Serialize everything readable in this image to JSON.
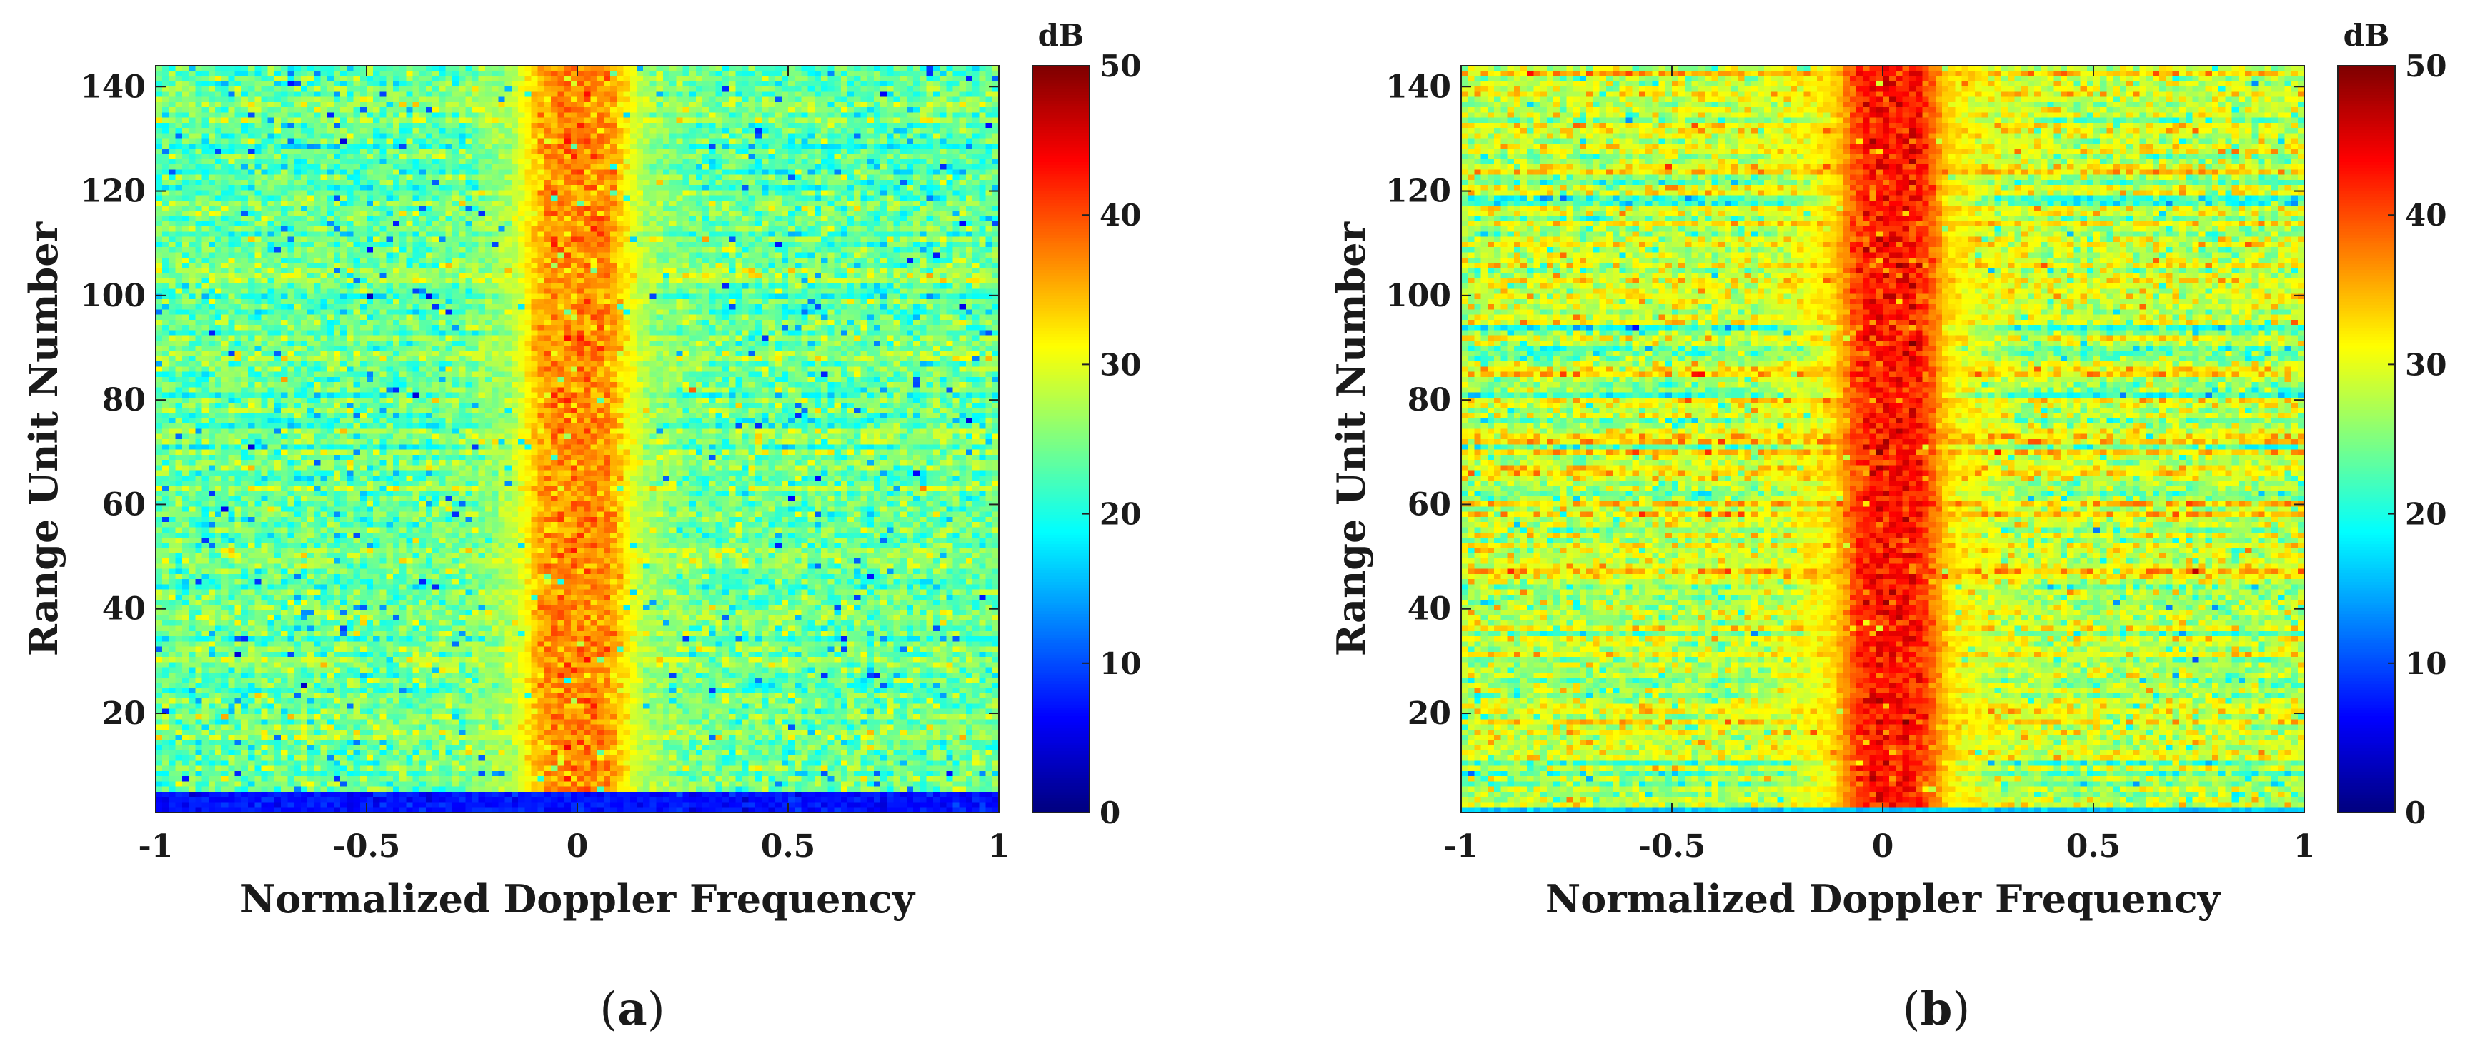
{
  "figure": {
    "panels": [
      "a",
      "b"
    ]
  },
  "chart_data": [
    {
      "type": "heatmap",
      "panel_caption": "(a)",
      "caption_open": "(",
      "caption_letter": "a",
      "caption_close": ")",
      "xlabel": "Normalized Doppler Frequency",
      "ylabel": "Range Unit Number",
      "xlim": [
        -1,
        1
      ],
      "ylim": [
        1,
        144
      ],
      "x_ticks": [
        -1,
        -0.5,
        0,
        0.5,
        1
      ],
      "x_tick_labels": [
        "-1",
        "-0.5",
        "0",
        "0.5",
        "1"
      ],
      "y_ticks": [
        20,
        40,
        60,
        80,
        100,
        120,
        140
      ],
      "y_tick_labels": [
        "20",
        "40",
        "60",
        "80",
        "100",
        "120",
        "140"
      ],
      "grid": {
        "doppler_bins": 128,
        "range_units": 144
      },
      "colorbar": {
        "label": "dB",
        "range": [
          0,
          50
        ],
        "ticks": [
          0,
          10,
          20,
          30,
          40,
          50
        ],
        "tick_labels": [
          "0",
          "10",
          "20",
          "30",
          "40",
          "50"
        ],
        "colormap": "jet"
      },
      "model": {
        "background_db": 24,
        "background_spread_db": 3,
        "clutter_center": 0.0,
        "clutter_peak_db": 37,
        "clutter_halfwidth": 0.12,
        "shoulder_db": 30,
        "shoulder_halfwidth": 0.2,
        "row_variation_db": 1.5,
        "low_rows": 4,
        "low_rows_db": 7,
        "dip_probability": 0.02,
        "dip_db": 12
      }
    },
    {
      "type": "heatmap",
      "panel_caption": "(b)",
      "caption_open": "(",
      "caption_letter": "b",
      "caption_close": ")",
      "xlabel": "Normalized Doppler Frequency",
      "ylabel": "Range Unit Number",
      "xlim": [
        -1,
        1
      ],
      "ylim": [
        1,
        144
      ],
      "x_ticks": [
        -1,
        -0.5,
        0,
        0.5,
        1
      ],
      "x_tick_labels": [
        "-1",
        "-0.5",
        "0",
        "0.5",
        "1"
      ],
      "y_ticks": [
        20,
        40,
        60,
        80,
        100,
        120,
        140
      ],
      "y_tick_labels": [
        "20",
        "40",
        "60",
        "80",
        "100",
        "120",
        "140"
      ],
      "grid": {
        "doppler_bins": 128,
        "range_units": 144
      },
      "colorbar": {
        "label": "dB",
        "range": [
          0,
          50
        ],
        "ticks": [
          0,
          10,
          20,
          30,
          40,
          50
        ],
        "tick_labels": [
          "0",
          "10",
          "20",
          "30",
          "40",
          "50"
        ],
        "colormap": "jet"
      },
      "model": {
        "background_db": 28,
        "background_spread_db": 3,
        "clutter_center": 0.02,
        "clutter_peak_db": 43,
        "clutter_halfwidth": 0.11,
        "shoulder_db": 34,
        "shoulder_halfwidth": 0.22,
        "row_variation_db": 3,
        "low_rows": 1,
        "low_rows_db": 16,
        "dip_probability": 0.015,
        "dip_db": 8
      }
    }
  ]
}
